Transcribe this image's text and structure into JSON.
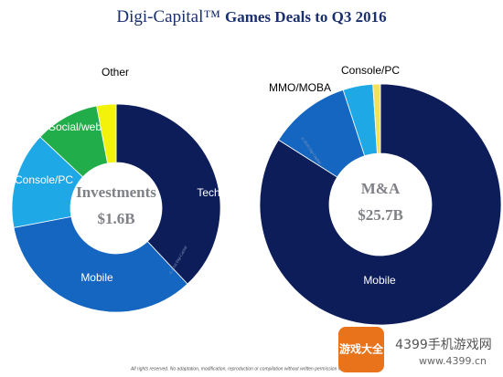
{
  "header": {
    "brand": "Digi-Capital™",
    "title": "Games Deals to Q3 2016"
  },
  "chart_data": [
    {
      "type": "pie",
      "center_title": "Investments",
      "center_value": "$1.6B",
      "categories": [
        "Tech",
        "Mobile",
        "Console/PC",
        "Social/web",
        "Other"
      ],
      "values": [
        38,
        34,
        15,
        10,
        3
      ],
      "colors": [
        "#0c1d5a",
        "#1466c0",
        "#1fa8e6",
        "#21ae4a",
        "#f3f20b"
      ]
    },
    {
      "type": "pie",
      "center_title": "M&A",
      "center_value": "$25.7B",
      "categories": [
        "Mobile",
        "MMO/MOBA",
        "Console/PC",
        null
      ],
      "values": [
        84,
        11,
        4,
        1
      ],
      "colors": [
        "#0c1d5a",
        "#1466c0",
        "#1fa8e6",
        "#f2e15a"
      ]
    }
  ],
  "slice_credit": "© 2016 Digi-Capital",
  "footer": "All rights reserved. No adaptation, modification, reproduction or compilation without written permission from Digi-Capital",
  "watermark": {
    "logo": "游戏大全",
    "site": "4399手机游戏网",
    "url": "www.4399.cn"
  }
}
